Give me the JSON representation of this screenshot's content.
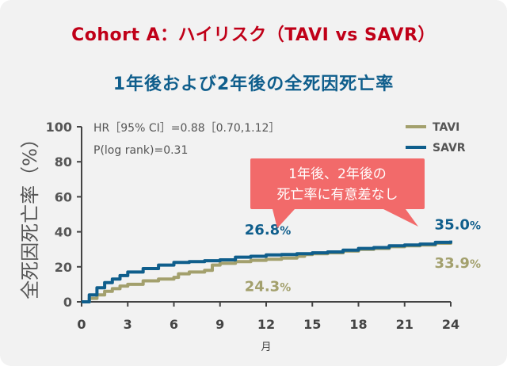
{
  "title": "Cohort A：ハイリスク（TAVI vs SAVR）",
  "subtitle": "1年後および2年後の全死因死亡率",
  "stats": {
    "hr": "HR［95% CI］=0.88［0.70,1.12］",
    "p": "P(log rank)=0.31"
  },
  "callout": {
    "line1": "1年後、2年後の",
    "line2": "死亡率に有意差なし",
    "color": "#f26a6a"
  },
  "chart_data": {
    "type": "line",
    "xlabel": "月",
    "ylabel": "全死因死亡率（%）",
    "xlim": [
      0,
      24
    ],
    "ylim": [
      0,
      100
    ],
    "xticks": [
      0,
      3,
      6,
      9,
      12,
      15,
      18,
      21,
      24
    ],
    "yticks": [
      0,
      20,
      40,
      60,
      80,
      100
    ],
    "legend_position": "top-right",
    "series": [
      {
        "name": "TAVI",
        "color": "#a3a06d",
        "x": [
          0,
          0.5,
          1,
          1.5,
          2,
          2.5,
          3,
          4,
          5,
          6,
          6.3,
          7,
          8,
          8.5,
          9,
          10,
          11,
          12,
          13,
          14,
          14.5,
          15,
          16,
          17,
          18,
          19,
          20,
          21,
          22,
          23,
          24
        ],
        "y": [
          0,
          2,
          4,
          6,
          7.5,
          9,
          10,
          12,
          13,
          14,
          16,
          17,
          18,
          21,
          22,
          23,
          23.7,
          24.3,
          25,
          26,
          27,
          27.5,
          28,
          29,
          30,
          30.5,
          31.5,
          32,
          32.5,
          33.5,
          33.9
        ]
      },
      {
        "name": "SAVR",
        "color": "#0f5e8c",
        "x": [
          0,
          0.5,
          1,
          1.5,
          2,
          2.5,
          3,
          4,
          5,
          6,
          7,
          8,
          9,
          10,
          11,
          12,
          13,
          14,
          15,
          16,
          17,
          18,
          19,
          20,
          21,
          22,
          23,
          24
        ],
        "y": [
          0,
          4,
          8,
          11,
          13,
          15,
          17,
          19,
          21,
          22.5,
          23,
          23.5,
          24,
          25.5,
          26,
          26.8,
          27,
          27.5,
          28,
          28.5,
          29.5,
          30.5,
          31,
          32,
          32.5,
          33,
          34,
          35.0
        ]
      }
    ],
    "annotations": [
      {
        "series": "SAVR",
        "x": 12,
        "y": 26.8,
        "value": "26.8",
        "unit": "%"
      },
      {
        "series": "TAVI",
        "x": 12,
        "y": 24.3,
        "value": "24.3",
        "unit": "%"
      },
      {
        "series": "SAVR",
        "x": 24,
        "y": 35.0,
        "value": "35.0",
        "unit": "%"
      },
      {
        "series": "TAVI",
        "x": 24,
        "y": 33.9,
        "value": "33.9",
        "unit": "%"
      }
    ]
  }
}
